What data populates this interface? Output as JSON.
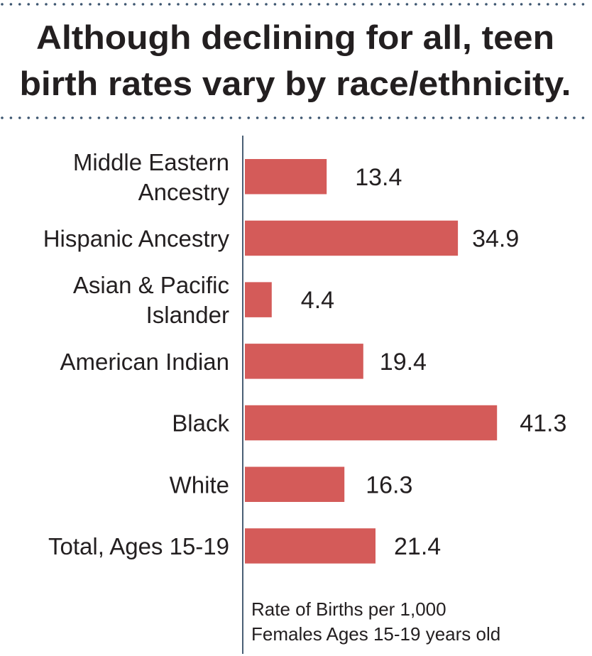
{
  "chart_data": {
    "type": "bar",
    "orientation": "horizontal",
    "title_lines": [
      "Although declining for all, teen",
      "birth rates vary by race/ethnicity."
    ],
    "categories": [
      [
        "Middle Eastern",
        "Ancestry"
      ],
      [
        "Hispanic Ancestry"
      ],
      [
        "Asian & Pacific",
        "Islander"
      ],
      [
        "American Indian"
      ],
      [
        "Black"
      ],
      [
        "White"
      ],
      [
        "Total, Ages 15-19"
      ]
    ],
    "values": [
      13.4,
      34.9,
      4.4,
      19.4,
      41.3,
      16.3,
      21.4
    ],
    "value_labels": [
      "13.4",
      "34.9",
      "4.4",
      "19.4",
      "41.3",
      "16.3",
      "21.4"
    ],
    "axis_note_lines": [
      "Rate of Births per 1,000",
      "Females Ages 15-19 years old"
    ],
    "xlim": [
      0,
      50
    ],
    "grid": false,
    "legend": "none",
    "colors": {
      "bar": "#d45b59",
      "text": "#231f20",
      "axis": "#4a5f75",
      "dots": "#3d5670"
    }
  }
}
